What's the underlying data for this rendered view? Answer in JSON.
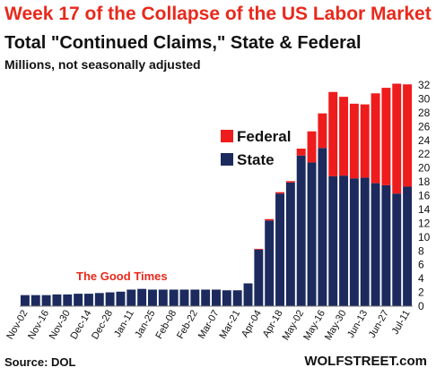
{
  "header": {
    "title": "Week 17 of the Collapse of the US Labor Market",
    "subtitle": "Total \"Continued Claims,\" State & Federal",
    "units": "Millions, not seasonally adjusted"
  },
  "footer": {
    "source": "Source: DOL",
    "site": "WOLFSTREET.com"
  },
  "colors": {
    "state": "#1c2a5e",
    "federal": "#ee1c1c",
    "annotation": "#e8291c"
  },
  "chart_data": {
    "type": "bar",
    "stacked": true,
    "categories": [
      "Nov-02",
      "Nov-09",
      "Nov-16",
      "Nov-23",
      "Nov-30",
      "Dec-07",
      "Dec-14",
      "Dec-21",
      "Dec-28",
      "Jan-04",
      "Jan-11",
      "Jan-18",
      "Jan-25",
      "Feb-01",
      "Feb-08",
      "Feb-15",
      "Feb-22",
      "Feb-29",
      "Mar-07",
      "Mar-14",
      "Mar-21",
      "Mar-28",
      "Apr-04",
      "Apr-11",
      "Apr-18",
      "Apr-25",
      "May-02",
      "May-09",
      "May-16",
      "May-23",
      "May-30",
      "Jun-06",
      "Jun-13",
      "Jun-20",
      "Jun-27",
      "Jul-04",
      "Jul-11"
    ],
    "x_tick_labels": [
      "Nov-02",
      "Nov-16",
      "Nov-30",
      "Dec-14",
      "Dec-28",
      "Jan-11",
      "Jan-25",
      "Feb-08",
      "Feb-22",
      "Mar-07",
      "Mar-21",
      "Apr-04",
      "Apr-18",
      "May-02",
      "May-16",
      "May-30",
      "Jun-13",
      "Jun-27",
      "Jul-11"
    ],
    "series": [
      {
        "name": "State",
        "values": [
          1.6,
          1.6,
          1.6,
          1.7,
          1.7,
          1.8,
          1.8,
          1.9,
          2.0,
          2.1,
          2.4,
          2.5,
          2.4,
          2.4,
          2.4,
          2.4,
          2.4,
          2.4,
          2.4,
          2.3,
          2.3,
          3.3,
          8.2,
          12.4,
          16.3,
          17.9,
          21.8,
          20.8,
          22.9,
          18.8,
          18.9,
          18.5,
          18.6,
          17.8,
          17.5,
          16.3,
          17.3
        ]
      },
      {
        "name": "Federal",
        "values": [
          0.0,
          0.0,
          0.0,
          0.0,
          0.0,
          0.0,
          0.0,
          0.0,
          0.0,
          0.0,
          0.0,
          0.0,
          0.0,
          0.0,
          0.0,
          0.0,
          0.0,
          0.0,
          0.0,
          0.0,
          0.0,
          0.0,
          0.1,
          0.2,
          0.2,
          0.2,
          1.0,
          4.5,
          5.0,
          12.2,
          11.4,
          10.8,
          10.6,
          13.0,
          14.1,
          15.9,
          14.8
        ]
      }
    ],
    "ylim": [
      0,
      32
    ],
    "yticks": [
      0,
      2,
      4,
      6,
      8,
      10,
      12,
      14,
      16,
      18,
      20,
      22,
      24,
      26,
      28,
      30,
      32
    ],
    "y_axis_side": "right",
    "legend": "center-right inside plot",
    "grid": false,
    "annotation": "The Good Times"
  }
}
